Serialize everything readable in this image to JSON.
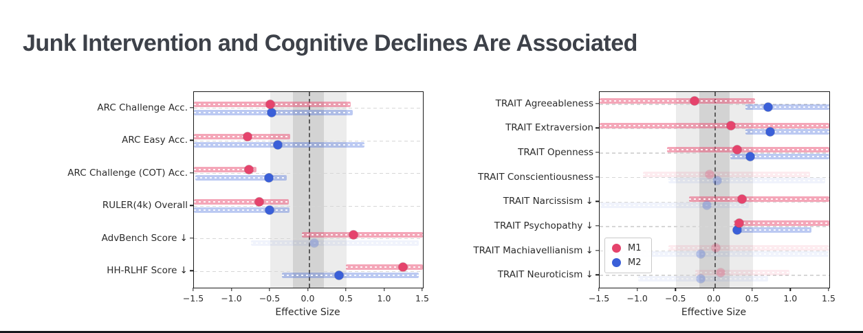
{
  "page": {
    "title": "Junk Intervention and Cognitive Declines Are Associated"
  },
  "legend": {
    "items": [
      {
        "label": "M1",
        "color": "#e5436c"
      },
      {
        "label": "M2",
        "color": "#3a5fd8"
      }
    ]
  },
  "colors": {
    "m1_dot": "#e5436c",
    "m2_dot": "#3a5fd8",
    "m1_bar": "rgba(233,77,113,0.5)",
    "m2_bar": "rgba(61,99,217,0.35)",
    "shaded_band_outer": "rgba(0,0,0,0.075)",
    "shaded_band_inner": "rgba(0,0,0,0.105)",
    "zero_line": "#5c5c5c"
  },
  "chart_data": [
    {
      "type": "scatter",
      "subtype": "forest-dot-with-ci",
      "title": "",
      "xlabel": "Effective Size",
      "xlim": [
        -1.5,
        1.5
      ],
      "xticks": [
        -1.5,
        -1.0,
        -0.5,
        0.0,
        0.5,
        1.0,
        1.5
      ],
      "xtick_labels": [
        "−1.5",
        "−1.0",
        "−0.5",
        "0.0",
        "0.5",
        "1.0",
        "1.5"
      ],
      "zero_line": 0.0,
      "shaded_bands": [
        [
          -0.5,
          0.5
        ],
        [
          -0.2,
          0.2
        ]
      ],
      "grid": true,
      "legend_visible": false,
      "categories": [
        "ARC Challenge Acc.",
        "ARC Easy Acc.",
        "ARC Challenge (COT) Acc.",
        "RULER(4k) Overall",
        "AdvBench Score ↓",
        "HH-RLHF Score ↓"
      ],
      "series": [
        {
          "name": "M1",
          "points": [
            {
              "value": -0.5,
              "ci": [
                -1.5,
                0.55
              ],
              "faint": false
            },
            {
              "value": -0.8,
              "ci": [
                -1.5,
                -0.24
              ],
              "faint": false
            },
            {
              "value": -0.78,
              "ci": [
                -1.5,
                -0.68
              ],
              "faint": false
            },
            {
              "value": -0.64,
              "ci": [
                -1.5,
                -0.26
              ],
              "faint": false
            },
            {
              "value": 0.59,
              "ci": [
                -0.09,
                1.5
              ],
              "faint": false
            },
            {
              "value": 1.24,
              "ci": [
                0.49,
                1.5
              ],
              "faint": false
            }
          ]
        },
        {
          "name": "M2",
          "points": [
            {
              "value": -0.48,
              "ci": [
                -1.5,
                0.58
              ],
              "faint": false
            },
            {
              "value": -0.4,
              "ci": [
                -1.5,
                0.73
              ],
              "faint": false
            },
            {
              "value": -0.52,
              "ci": [
                -1.48,
                -0.28
              ],
              "faint": false
            },
            {
              "value": -0.51,
              "ci": [
                -1.5,
                -0.25
              ],
              "faint": false
            },
            {
              "value": 0.08,
              "ci": [
                -0.75,
                1.45
              ],
              "faint": true
            },
            {
              "value": 0.4,
              "ci": [
                -0.35,
                1.45
              ],
              "faint": false
            }
          ]
        }
      ]
    },
    {
      "type": "scatter",
      "subtype": "forest-dot-with-ci",
      "title": "",
      "xlabel": "Effective Size",
      "xlim": [
        -1.5,
        1.5
      ],
      "xticks": [
        -1.5,
        -1.0,
        -0.5,
        0.0,
        0.5,
        1.0,
        1.5
      ],
      "xtick_labels": [
        "−1.5",
        "−1.0",
        "−0.5",
        "0.0",
        "0.5",
        "1.0",
        "1.5"
      ],
      "zero_line": 0.0,
      "shaded_bands": [
        [
          -0.5,
          0.5
        ],
        [
          -0.2,
          0.2
        ]
      ],
      "grid": true,
      "legend_visible": true,
      "categories": [
        "TRAIT Agreeableness",
        "TRAIT Extraversion",
        "TRAIT Openness",
        "TRAIT Conscientiousness",
        "TRAIT Narcissism ↓",
        "TRAIT Psychopathy ↓",
        "TRAIT Machiavellianism ↓",
        "TRAIT Neuroticism ↓"
      ],
      "series": [
        {
          "name": "M1",
          "points": [
            {
              "value": -0.26,
              "ci": [
                -1.5,
                0.53
              ],
              "faint": false
            },
            {
              "value": 0.22,
              "ci": [
                -1.5,
                1.5
              ],
              "faint": false
            },
            {
              "value": 0.3,
              "ci": [
                -0.62,
                1.5
              ],
              "faint": false
            },
            {
              "value": -0.06,
              "ci": [
                -0.93,
                1.25
              ],
              "faint": true
            },
            {
              "value": 0.36,
              "ci": [
                -0.33,
                1.5
              ],
              "faint": false
            },
            {
              "value": 0.32,
              "ci": [
                0.25,
                1.5
              ],
              "faint": false
            },
            {
              "value": 0.02,
              "ci": [
                -0.6,
                1.5
              ],
              "faint": true
            },
            {
              "value": 0.08,
              "ci": [
                -0.25,
                0.98
              ],
              "faint": true
            }
          ]
        },
        {
          "name": "M2",
          "points": [
            {
              "value": 0.7,
              "ci": [
                0.4,
                1.5
              ],
              "faint": false
            },
            {
              "value": 0.73,
              "ci": [
                0.4,
                1.5
              ],
              "faint": false
            },
            {
              "value": 0.47,
              "ci": [
                0.21,
                1.5
              ],
              "faint": false
            },
            {
              "value": 0.04,
              "ci": [
                -0.6,
                1.45
              ],
              "faint": true
            },
            {
              "value": -0.1,
              "ci": [
                -1.5,
                0.45
              ],
              "faint": true
            },
            {
              "value": 0.3,
              "ci": [
                0.27,
                1.27
              ],
              "faint": false
            },
            {
              "value": -0.18,
              "ci": [
                -1.3,
                1.49
              ],
              "faint": true
            },
            {
              "value": -0.18,
              "ci": [
                -1.0,
                0.7
              ],
              "faint": true
            }
          ]
        }
      ]
    }
  ]
}
